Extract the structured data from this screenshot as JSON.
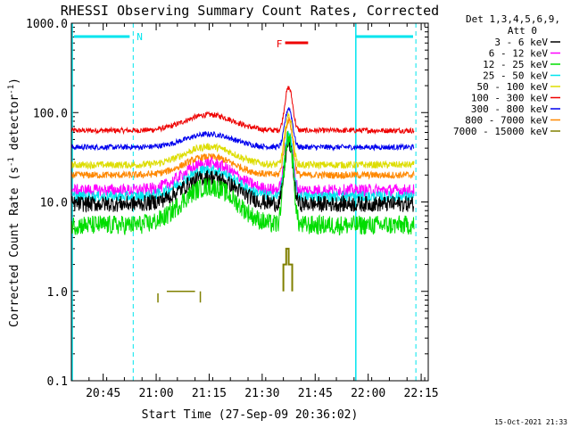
{
  "chart_data": {
    "type": "line",
    "title": "RHESSI Observing Summary Count Rates, Corrected",
    "xlabel": "Start Time (27-Sep-09 20:36:02)",
    "ylabel_main": "Corrected Count Rate (s",
    "ylabel_sup": "-1",
    "ylabel_mid": " detector",
    "ylabel_sup2": "-1",
    "ylabel_end": ")",
    "y_scale": "log",
    "ylim": [
      0.1,
      1000
    ],
    "xlim_minutes": [
      0,
      101
    ],
    "x_ticks": [
      {
        "t": 9,
        "label": "20:45"
      },
      {
        "t": 24,
        "label": "21:00"
      },
      {
        "t": 39,
        "label": "21:15"
      },
      {
        "t": 54,
        "label": "21:30"
      },
      {
        "t": 69,
        "label": "21:45"
      },
      {
        "t": 84,
        "label": "22:00"
      },
      {
        "t": 99,
        "label": "22:15"
      }
    ],
    "y_ticks": [
      {
        "v": 0.1,
        "label": "0.1"
      },
      {
        "v": 1,
        "label": "1.0"
      },
      {
        "v": 10,
        "label": "10.0"
      },
      {
        "v": 100,
        "label": "100.0"
      },
      {
        "v": 1000,
        "label": "1000.0"
      }
    ],
    "legend_header": [
      "Det 1,3,4,5,6,9,",
      "Att 0"
    ],
    "series": [
      {
        "name": "3 - 6 keV",
        "color": "#000000",
        "base": 9.5,
        "hump": 2.0,
        "peak": 45,
        "noise": 0.09
      },
      {
        "name": "6 - 12 keV",
        "color": "#ff00ff",
        "base": 13.5,
        "hump": 2.0,
        "peak": 56,
        "noise": 0.07
      },
      {
        "name": "12 - 25 keV",
        "color": "#00dd00",
        "base": 5.5,
        "hump": 2.7,
        "peak": 52,
        "noise": 0.11
      },
      {
        "name": "25 - 50 keV",
        "color": "#00e5ee",
        "base": 11.5,
        "hump": 2.0,
        "peak": 58,
        "noise": 0.06
      },
      {
        "name": "50 - 100 keV",
        "color": "#dddd00",
        "base": 26,
        "hump": 1.6,
        "peak": 92,
        "noise": 0.04
      },
      {
        "name": "100 - 300 keV",
        "color": "#ee0000",
        "base": 63,
        "hump": 1.5,
        "peak": 190,
        "noise": 0.03
      },
      {
        "name": "300 - 800 keV",
        "color": "#0000ee",
        "base": 41,
        "hump": 1.4,
        "peak": 112,
        "noise": 0.03
      },
      {
        "name": "800 - 7000 keV",
        "color": "#ff8800",
        "base": 20,
        "hump": 1.6,
        "peak": 82,
        "noise": 0.04
      },
      {
        "name": "7000 - 15000 keV",
        "color": "#808000",
        "base": null,
        "hump": null,
        "peak": null,
        "noise": null
      }
    ],
    "annotations": {
      "night_label": "N",
      "flare_label": "F",
      "night_color": "#00e5ee",
      "flare_color": "#ee0000"
    },
    "footer_date": "15-Oct-2021 21:33"
  }
}
